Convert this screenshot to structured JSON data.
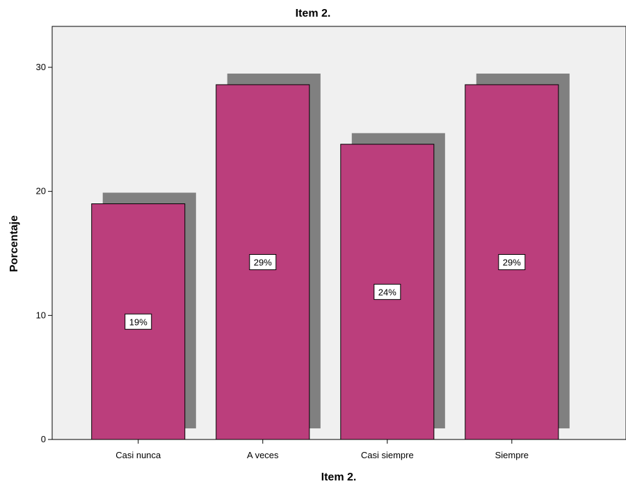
{
  "chart_data": {
    "type": "bar",
    "title": "Item 2.",
    "xlabel": "Item 2.",
    "ylabel": "Porcentaje",
    "categories": [
      "Casi nunca",
      "A veces",
      "Casi siempre",
      "Siempre"
    ],
    "values": [
      19.0,
      28.6,
      23.8,
      28.6
    ],
    "data_labels": [
      "19%",
      "29%",
      "24%",
      "29%"
    ],
    "ylim": [
      0,
      33.3
    ],
    "yticks": [
      0,
      10,
      20,
      30
    ],
    "ytick_labels": [
      "0",
      "10",
      "20",
      "30"
    ],
    "grid": false,
    "legend": "none",
    "colors": {
      "bar": "#bb3e7c",
      "shadow": "#808080",
      "plot_background": "#f0f0f0",
      "outline": "#000000"
    }
  }
}
